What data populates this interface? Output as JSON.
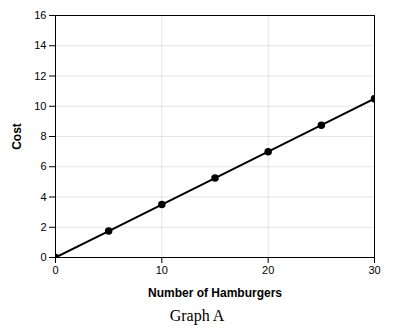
{
  "chart_data": {
    "type": "line",
    "title": "Graph A",
    "x": [
      0,
      5,
      10,
      15,
      20,
      25,
      30
    ],
    "values": [
      0,
      1.75,
      3.5,
      5.25,
      7.0,
      8.75,
      10.5
    ],
    "xlabel": "Number of Hamburgers",
    "ylabel": "Cost",
    "xlim": [
      0,
      30
    ],
    "ylim": [
      0,
      16
    ],
    "xticks": [
      0,
      10,
      20,
      30
    ],
    "yticks": [
      0,
      2,
      4,
      6,
      8,
      10,
      12,
      14,
      16
    ],
    "grid": true,
    "color": "#000000",
    "marker": "circle"
  }
}
